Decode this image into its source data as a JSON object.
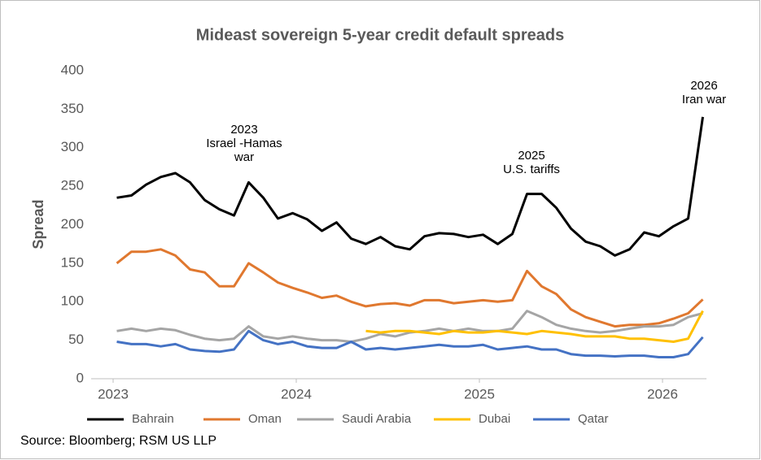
{
  "chart_data": {
    "type": "line",
    "title": "Mideast sovereign 5-year credit default spreads",
    "y_label": "Spread",
    "source": "Source: Bloomberg; RSM US LLP",
    "annotations": [
      [
        "2023",
        "Israel -Hamas",
        "war"
      ],
      [
        "2025",
        "U.S. tariffs"
      ],
      [
        "2026",
        "Iran war"
      ]
    ],
    "x": [
      2023.02,
      2023.1,
      2023.18,
      2023.26,
      2023.34,
      2023.42,
      2023.5,
      2023.58,
      2023.66,
      2023.74,
      2023.82,
      2023.9,
      2023.98,
      2024.06,
      2024.14,
      2024.22,
      2024.3,
      2024.38,
      2024.46,
      2024.54,
      2024.62,
      2024.7,
      2024.78,
      2024.86,
      2024.94,
      2025.02,
      2025.1,
      2025.18,
      2025.26,
      2025.34,
      2025.42,
      2025.5,
      2025.58,
      2025.66,
      2025.74,
      2025.82,
      2025.9,
      2025.98,
      2026.06,
      2026.14,
      2026.22
    ],
    "xlim": [
      2022.88,
      2026.24
    ],
    "xticks": [
      2023,
      2024,
      2025,
      2026
    ],
    "ylim": [
      0,
      400
    ],
    "yticks": [
      0,
      50,
      100,
      150,
      200,
      250,
      300,
      350,
      400
    ],
    "series": [
      {
        "name": "Bahrain",
        "color": "#000000",
        "values": [
          235,
          238,
          252,
          262,
          267,
          255,
          232,
          220,
          212,
          255,
          235,
          208,
          215,
          207,
          192,
          203,
          182,
          175,
          184,
          172,
          168,
          185,
          189,
          188,
          184,
          187,
          175,
          188,
          240,
          240,
          222,
          195,
          178,
          172,
          160,
          168,
          190,
          185,
          198,
          208,
          340
        ]
      },
      {
        "name": "Oman",
        "color": "#e0782f",
        "values": [
          150,
          165,
          165,
          168,
          160,
          142,
          138,
          120,
          120,
          150,
          138,
          125,
          118,
          112,
          105,
          108,
          100,
          94,
          97,
          98,
          95,
          102,
          102,
          98,
          100,
          102,
          100,
          102,
          140,
          120,
          110,
          90,
          80,
          74,
          68,
          70,
          70,
          72,
          78,
          85,
          103
        ]
      },
      {
        "name": "Saudi Arabia",
        "color": "#a5a5a5",
        "values": [
          62,
          65,
          62,
          65,
          63,
          57,
          52,
          50,
          52,
          68,
          55,
          52,
          55,
          52,
          50,
          50,
          48,
          52,
          58,
          55,
          60,
          62,
          65,
          62,
          65,
          62,
          62,
          65,
          88,
          80,
          70,
          65,
          62,
          60,
          62,
          65,
          68,
          68,
          70,
          80,
          85
        ]
      },
      {
        "name": "Dubai",
        "color": "#ffc000",
        "values": [
          null,
          null,
          null,
          null,
          null,
          null,
          null,
          null,
          null,
          null,
          null,
          null,
          null,
          null,
          null,
          null,
          null,
          62,
          60,
          62,
          62,
          60,
          58,
          62,
          60,
          60,
          62,
          60,
          58,
          62,
          60,
          58,
          55,
          55,
          55,
          52,
          52,
          50,
          48,
          52,
          88
        ]
      },
      {
        "name": "Qatar",
        "color": "#4472c4",
        "values": [
          48,
          45,
          45,
          42,
          45,
          38,
          36,
          35,
          38,
          62,
          50,
          45,
          48,
          42,
          40,
          40,
          48,
          38,
          40,
          38,
          40,
          42,
          44,
          42,
          42,
          44,
          38,
          40,
          42,
          38,
          38,
          32,
          30,
          30,
          29,
          30,
          30,
          28,
          28,
          32,
          54
        ]
      }
    ]
  }
}
